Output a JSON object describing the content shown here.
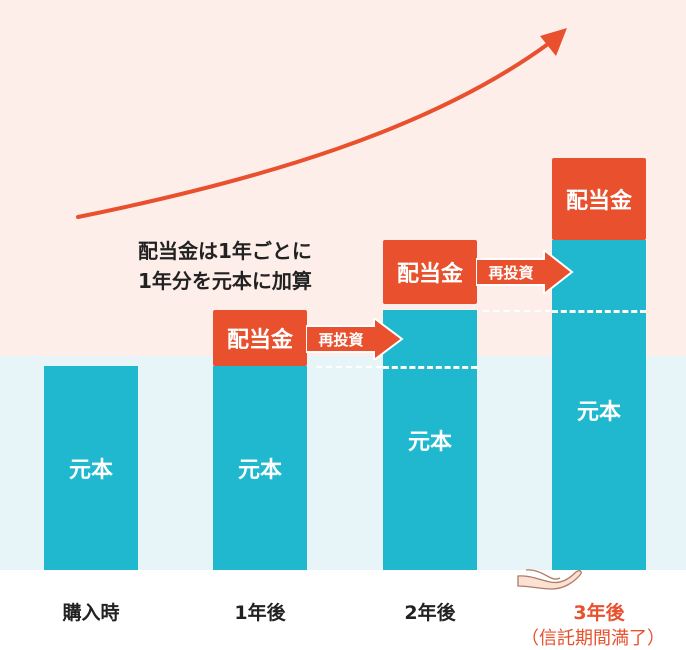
{
  "note": {
    "line1": "配当金は1年ごとに",
    "line2": "1年分を元本に加算"
  },
  "bars": [
    {
      "label": "元本",
      "x_label": "購入時"
    },
    {
      "label": "元本",
      "x_label": "1年後"
    },
    {
      "label": "元本",
      "x_label": "2年後"
    },
    {
      "label": "元本",
      "x_label": "3年後"
    }
  ],
  "dividend_label": "配当金",
  "reinvest_label": "再投資",
  "final_note": "（信託期間満了）",
  "colors": {
    "principal": "#1fb8cf",
    "dividend": "#e8502e",
    "top_bg": "#fdeeea",
    "bottom_bg": "#e8f5f8"
  },
  "icons": [
    "growth-arrow-icon",
    "open-hand-icon"
  ]
}
